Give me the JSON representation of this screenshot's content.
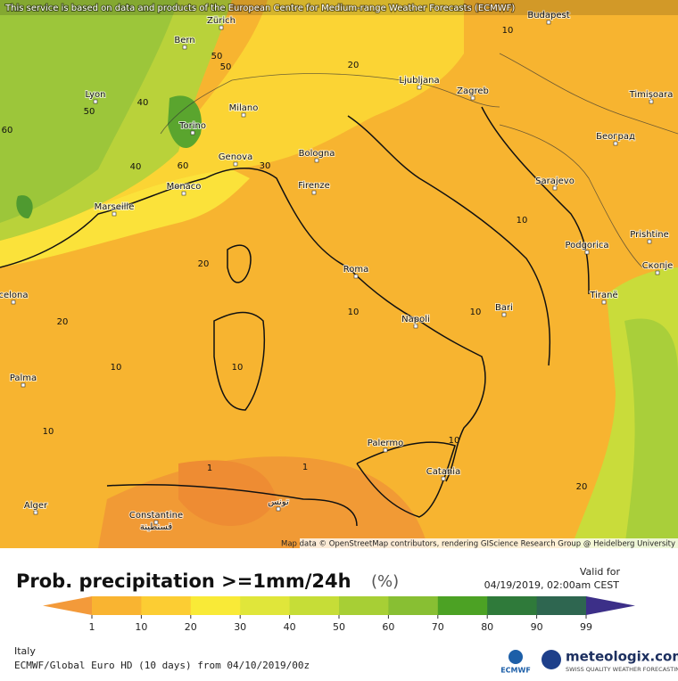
{
  "header": {
    "notice": "This service is based on data and products of the European Centre for Medium-range Weather Forecasts (ECMWF)"
  },
  "map": {
    "cities": [
      "Zürich",
      "Bern",
      "Budapest",
      "Lyon",
      "Milano",
      "Ljubljana",
      "Zagreb",
      "Timișoara",
      "Torino",
      "Београд",
      "Genova",
      "Bologna",
      "Sarajevo",
      "Monaco",
      "Firenze",
      "Marseille",
      "Podgorica",
      "Prishtine",
      "Roma",
      "Скопје",
      "Tiranë",
      "celona",
      "Bari",
      "Napoli",
      "Palma",
      "Palermo",
      "Catania",
      "Alger",
      "Constantine",
      "قسنطينة",
      "تونس"
    ],
    "contour_labels": [
      50,
      50,
      50,
      40,
      40,
      60,
      60,
      30,
      20,
      20,
      20,
      10,
      10,
      10,
      10,
      10,
      10,
      10,
      1,
      1,
      20,
      10
    ],
    "attribution": "Map data © OpenStreetMap contributors, rendering GIScience Research Group @ Heidelberg University"
  },
  "legend": {
    "title": "Prob. precipitation >=1mm/24h",
    "unit": "(%)",
    "valid_label": "Valid for",
    "valid_time": "04/19/2019, 02:00am CEST",
    "ticks": [
      1,
      10,
      20,
      30,
      40,
      50,
      60,
      70,
      80,
      90,
      99
    ],
    "colors": [
      "#f39a3a",
      "#f9b431",
      "#fccd33",
      "#f9ea37",
      "#e0e63a",
      "#c6dd37",
      "#a7cf35",
      "#88bf33",
      "#4ca224",
      "#2f7a3a",
      "#2e6650",
      "#3c2f88"
    ]
  },
  "footer": {
    "region": "Italy",
    "model": "ECMWF/Global Euro HD (10 days) from 04/10/2019/00z",
    "ecmwf": "ECMWF",
    "brand": "meteologix.com",
    "tagline": "SWISS QUALITY WEATHER FORECASTING"
  }
}
